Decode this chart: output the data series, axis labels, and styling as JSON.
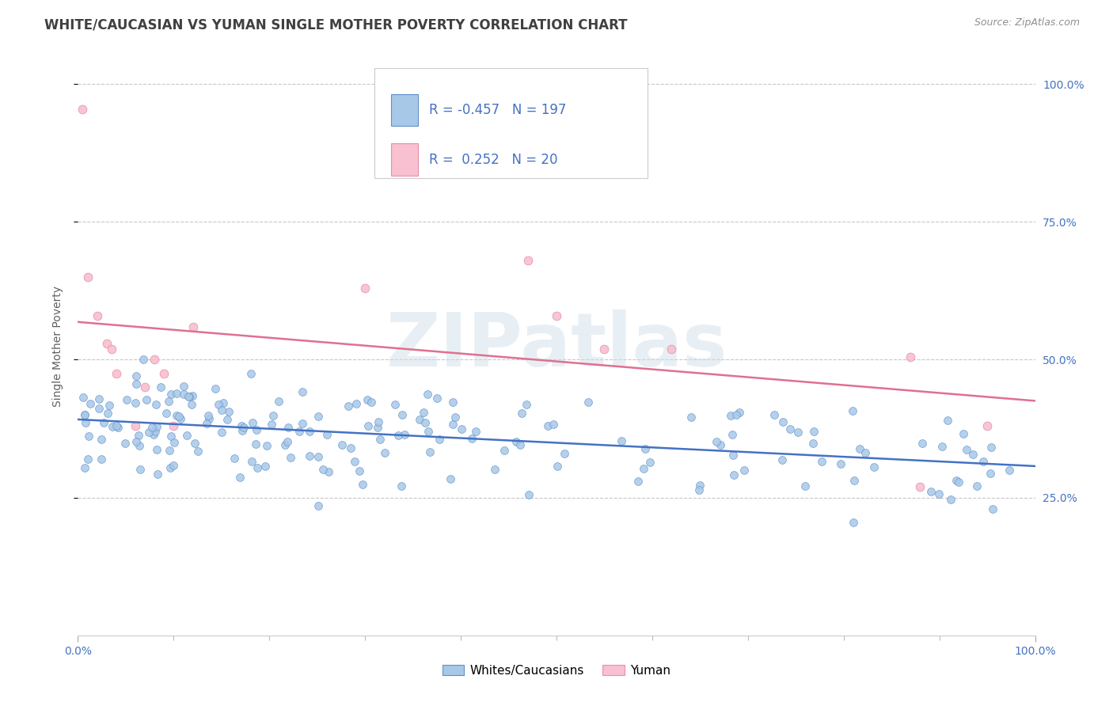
{
  "title": "WHITE/CAUCASIAN VS YUMAN SINGLE MOTHER POVERTY CORRELATION CHART",
  "source": "Source: ZipAtlas.com",
  "ylabel": "Single Mother Poverty",
  "blue_R": -0.457,
  "blue_N": 197,
  "pink_R": 0.252,
  "pink_N": 20,
  "blue_line_color": "#4472c4",
  "pink_line_color": "#e07090",
  "blue_scatter_fill": "#a8c8e8",
  "blue_scatter_edge": "#6090c8",
  "pink_scatter_fill": "#f8c0d0",
  "pink_scatter_edge": "#e890a8",
  "watermark_text": "ZIPatlas",
  "legend_labels": [
    "Whites/Caucasians",
    "Yuman"
  ],
  "legend_R_color": "#4472c4",
  "xmin": 0.0,
  "xmax": 1.0,
  "ymin": 0.0,
  "ymax": 1.05,
  "yticks": [
    0.25,
    0.5,
    0.75,
    1.0
  ],
  "ytick_labels": [
    "25.0%",
    "50.0%",
    "75.0%",
    "100.0%"
  ],
  "background_color": "#ffffff",
  "grid_color": "#c8c8c8",
  "title_color": "#404040",
  "source_color": "#909090",
  "ylabel_color": "#606060",
  "tick_color": "#4472c4"
}
